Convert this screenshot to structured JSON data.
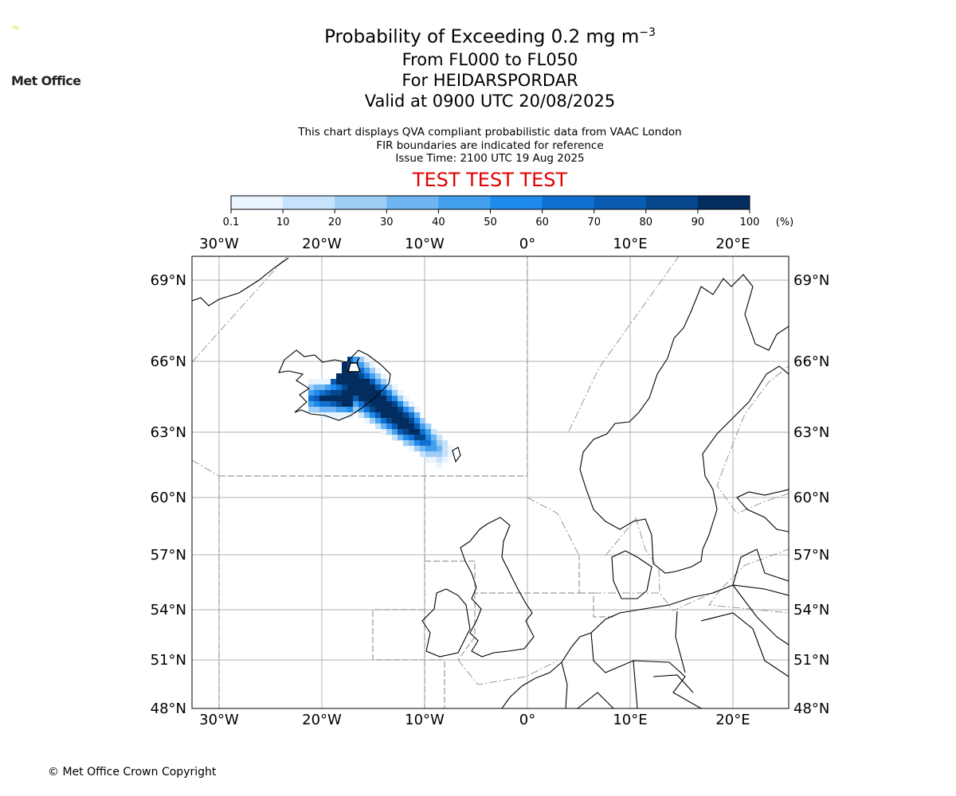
{
  "logo": {
    "text": "Met Office",
    "color": "#c8f53a"
  },
  "title": {
    "main_prefix": "Probability of Exceeding 0.2 mg m",
    "main_exponent": "−3",
    "line2": "From FL000 to FL050",
    "line3": "For HEIDARSPORDAR",
    "line4": "Valid at 0900 UTC 20/08/2025"
  },
  "subtitle": {
    "line1": "This chart displays QVA compliant probabilistic data from VAAC London",
    "line2": "FIR boundaries are indicated for reference",
    "line3": "Issue Time: 2100 UTC 19 Aug 2025"
  },
  "test_banner": {
    "text": "TEST TEST TEST",
    "color": "#e00000"
  },
  "colorbar": {
    "ticks": [
      "0.1",
      "10",
      "20",
      "30",
      "40",
      "50",
      "60",
      "70",
      "80",
      "90",
      "100"
    ],
    "unit": "(%)",
    "colors": [
      "#eaf4ff",
      "#c6e3fb",
      "#9fcdf6",
      "#6eb5f1",
      "#42a0ee",
      "#1e8bec",
      "#1070d2",
      "#0a5cb3",
      "#06468c",
      "#032d5e"
    ]
  },
  "map": {
    "lon_labels": [
      "30°W",
      "20°W",
      "10°W",
      "0°",
      "10°E",
      "20°E"
    ],
    "lat_labels": [
      "69°N",
      "66°N",
      "63°N",
      "60°N",
      "57°N",
      "54°N",
      "51°N",
      "48°N"
    ],
    "volcano_name": "HEIDARSPORDAR"
  },
  "footer": {
    "copyright": "© Met Office Crown Copyright"
  }
}
